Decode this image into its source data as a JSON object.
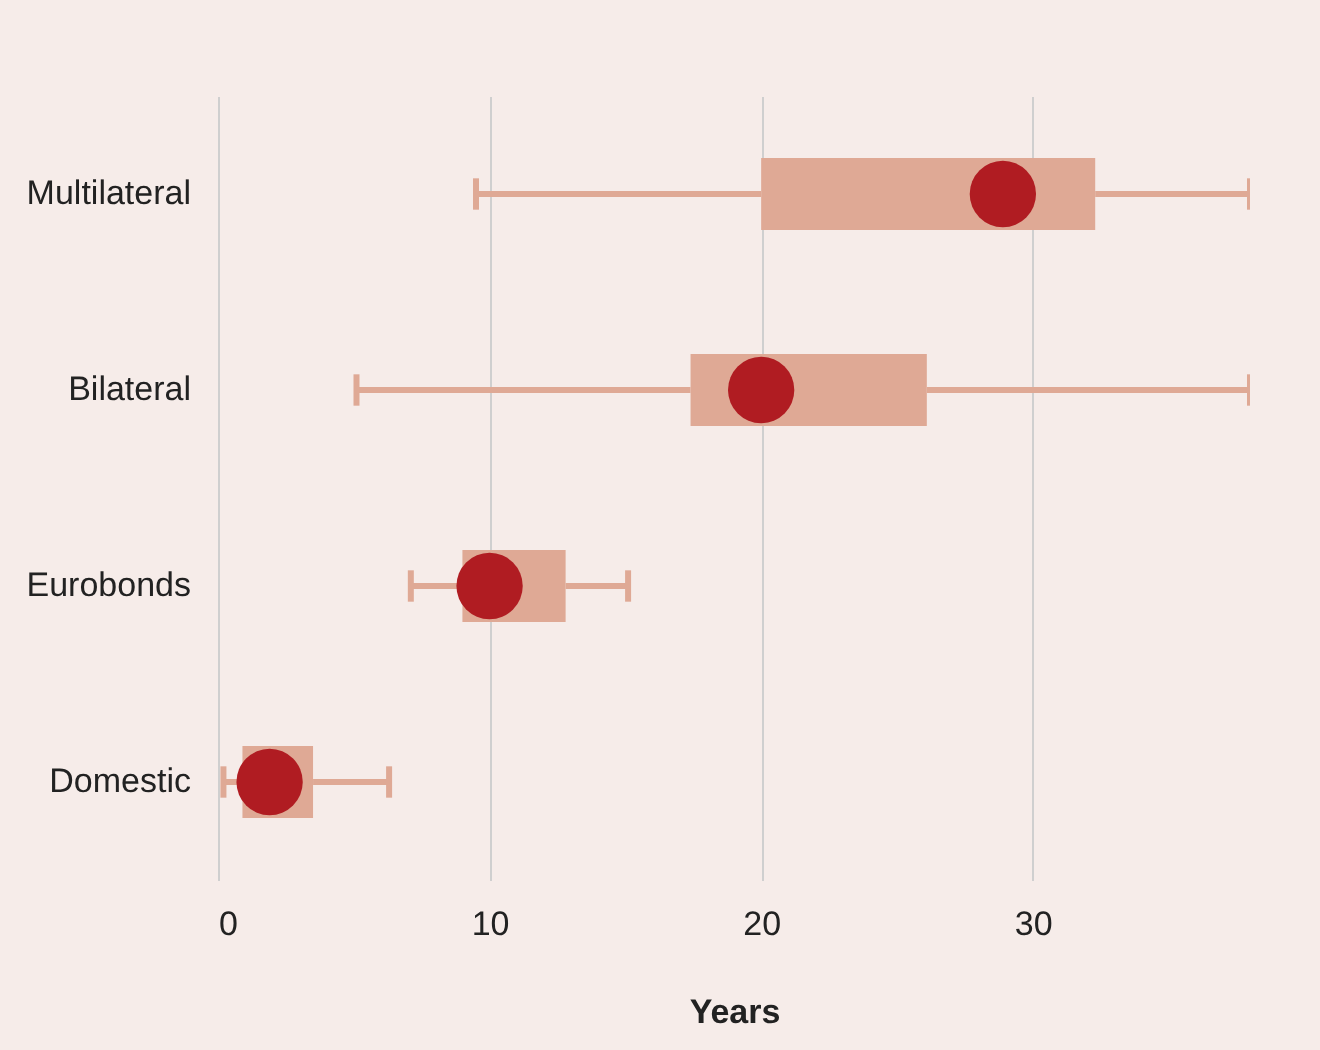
{
  "chart_data": {
    "type": "box",
    "orientation": "horizontal",
    "xlabel": "Years",
    "categories": [
      "Multilateral",
      "Bilateral",
      "Eurobonds",
      "Domestic"
    ],
    "series": [
      {
        "color": "#dfa995",
        "boxes": [
          {
            "low": 9.5,
            "q1": 20,
            "median": 28.9,
            "q3": 32.3,
            "high": 38
          },
          {
            "low": 5.1,
            "q1": 17.4,
            "median": 20,
            "q3": 26.1,
            "high": 38
          },
          {
            "low": 7.1,
            "q1": 9,
            "median": 10,
            "q3": 12.8,
            "high": 15.1
          },
          {
            "low": 0.2,
            "q1": 0.9,
            "median": 1.9,
            "q3": 3.5,
            "high": 6.3
          }
        ]
      }
    ],
    "xlim": [
      0,
      38
    ],
    "xticks": [
      0,
      10,
      20,
      30
    ],
    "grid": "x"
  }
}
